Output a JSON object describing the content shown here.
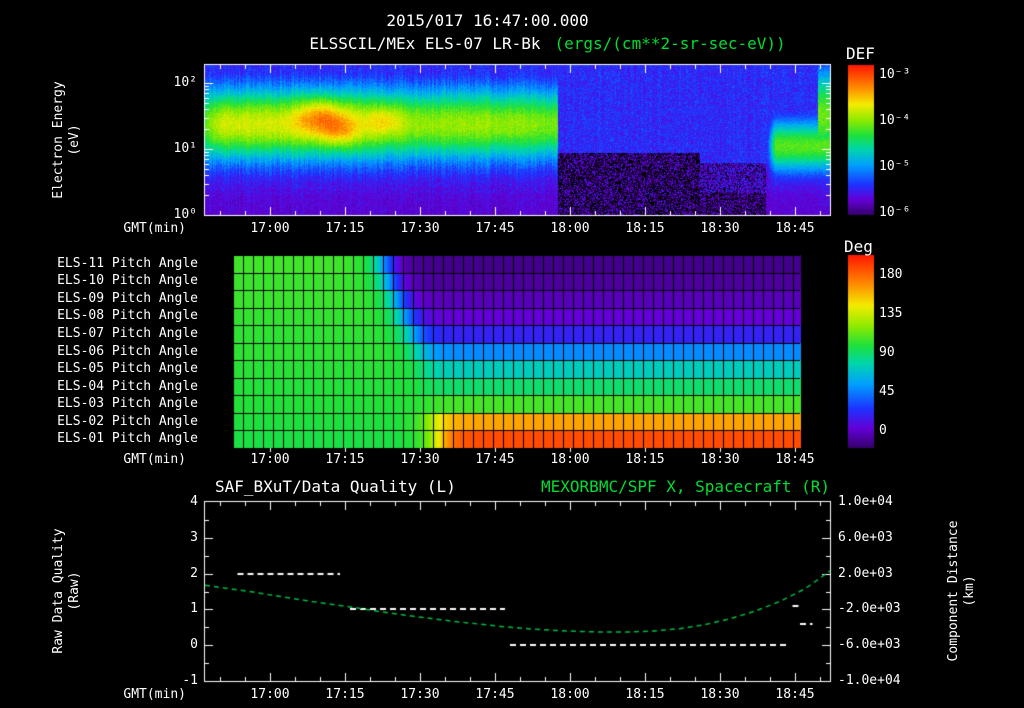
{
  "chart_data": [
    {
      "id": "electron-spectrogram",
      "type": "heatmap",
      "title": "2015/017 16:47:00.000",
      "subtitle_instrument": "ELSSCIL/MEx ELS-07 LR-Bk",
      "subtitle_units": "(ergs/(cm**2-sr-sec-eV))",
      "xlabel": "GMT(min)",
      "ylabel_line1": "Electron Energy",
      "ylabel_line2": "(eV)",
      "y_scale": "log",
      "y_range_ev": [
        1,
        186
      ],
      "y_tick_labels": [
        "10²",
        "10¹",
        "10⁰"
      ],
      "x_start_time": "16:47",
      "x_total_minutes": 125,
      "x_tick_labels": [
        "17:00",
        "17:15",
        "17:30",
        "17:45",
        "18:00",
        "18:15",
        "18:30",
        "18:45"
      ],
      "x_tick_minutes": [
        13,
        28,
        43,
        58,
        73,
        88,
        103,
        118
      ],
      "colorbar": {
        "title": "DEF",
        "units": "ergs/(cm**2-sr-sec-eV)",
        "tick_labels": [
          "10⁻³",
          "10⁻⁴",
          "10⁻⁵",
          "10⁻⁶"
        ],
        "log10_flux_range": [
          -6,
          -3
        ]
      },
      "features": [
        {
          "name": "background",
          "log10_flux": -5.45,
          "noise": 0.18
        },
        {
          "name": "low-energy-dark",
          "energy_ev_max": 6.3,
          "log10_flux": -5.8,
          "noise": 0.45
        },
        {
          "name": "bottom-black",
          "energy_ev_max": 2.2,
          "log10_flux": -6.0,
          "noise": 0.45
        },
        {
          "name": "main-band",
          "t_min_range": [
            0,
            70.5
          ],
          "center_log10_ev": 1.38,
          "sigma_log10_ev": 0.4,
          "peak_log10_flux_early": -3.9,
          "peak_log10_flux_late": -4.08
        },
        {
          "name": "hotspot-1",
          "t_min": 23,
          "sigma_t_min": 3.5,
          "center_log10_ev": 1.5,
          "sigma_log10_ev": 0.2,
          "extra_log10": 0.55
        },
        {
          "name": "hotspot-2",
          "t_min": 27,
          "sigma_t_min": 2.5,
          "center_log10_ev": 1.25,
          "sigma_log10_ev": 0.16,
          "extra_log10": 0.35
        },
        {
          "name": "hotspot-3",
          "t_min": 36,
          "sigma_t_min": 2.5,
          "center_log10_ev": 1.45,
          "sigma_log10_ev": 0.16,
          "extra_log10": 0.3
        },
        {
          "name": "post-quiet-dark",
          "t_min_range": [
            69,
            99
          ],
          "energy_ev_max": 8.9,
          "log10_flux": -6.05,
          "noise": 0.55
        },
        {
          "name": "late-blob",
          "t_min_range": [
            112,
            125
          ],
          "center_log10_ev": 1.05,
          "sigma_log10_ev": 0.28,
          "peak_log10_flux": -4.25
        },
        {
          "name": "right-edge-streak",
          "t_min_range": [
            122.5,
            125
          ],
          "center_log10_ev": 1.5,
          "sigma_log10_ev": 0.5,
          "peak_log10_flux": -4.2
        }
      ]
    },
    {
      "id": "pitch-angle-panels",
      "type": "heatmap",
      "xlabel": "GMT(min)",
      "x_axis_shared": true,
      "data_start_min": 5.6,
      "data_end_min": 119,
      "grid_cell_min": 2,
      "transition_sigma_min": 1.6,
      "colorbar": {
        "title": "Deg",
        "tick_labels": [
          "180",
          "135",
          "90",
          "45",
          "0"
        ],
        "range_deg": [
          0,
          180
        ]
      },
      "rows": [
        {
          "label": "ELS-11 Pitch Angle",
          "pre_deg": 101,
          "post_deg": 5,
          "switch_min": 36
        },
        {
          "label": "ELS-10 Pitch Angle",
          "pre_deg": 100,
          "post_deg": 8,
          "switch_min": 37
        },
        {
          "label": "ELS-09 Pitch Angle",
          "pre_deg": 100,
          "post_deg": 13,
          "switch_min": 38.5
        },
        {
          "label": "ELS-08 Pitch Angle",
          "pre_deg": 99,
          "post_deg": 18,
          "switch_min": 40
        },
        {
          "label": "ELS-07 Pitch Angle",
          "pre_deg": 98,
          "post_deg": 30,
          "switch_min": 41.5
        },
        {
          "label": "ELS-06 Pitch Angle",
          "pre_deg": 98,
          "post_deg": 55,
          "switch_min": 42.5
        },
        {
          "label": "ELS-05 Pitch Angle",
          "pre_deg": 97,
          "post_deg": 75,
          "switch_min": 43.5
        },
        {
          "label": "ELS-04 Pitch Angle",
          "pre_deg": 96,
          "post_deg": 88,
          "switch_min": 44
        },
        {
          "label": "ELS-03 Pitch Angle",
          "pre_deg": 96,
          "post_deg": 102,
          "switch_min": 44.5
        },
        {
          "label": "ELS-02 Pitch Angle",
          "pre_deg": 95,
          "post_deg": 148,
          "switch_min": 45.5
        },
        {
          "label": "ELS-01 Pitch Angle",
          "pre_deg": 94,
          "post_deg": 168,
          "switch_min": 46.5
        }
      ]
    },
    {
      "id": "quality-and-distance",
      "type": "line",
      "xlabel": "GMT(min)",
      "x_axis_shared": true,
      "left_title": "SAF_BXuT/Data Quality (L)",
      "right_title": "MEXORBMC/SPF X, Spacecraft (R)",
      "left_axis": {
        "label_line1": "Raw Data Quality",
        "label_line2": "(Raw)",
        "range": [
          -1,
          4
        ],
        "tick_labels": [
          "4",
          "3",
          "2",
          "1",
          "0",
          "-1"
        ],
        "tick_values": [
          4,
          3,
          2,
          1,
          0,
          -1
        ]
      },
      "right_axis": {
        "label_line1": "Component Distance",
        "label_line2": "(km)",
        "range": [
          -10000,
          10000
        ],
        "tick_labels": [
          "1.0e+04",
          "6.0e+03",
          "2.0e+03",
          "-2.0e+03",
          "-6.0e+03",
          "-1.0e+04"
        ],
        "tick_values": [
          10000,
          6000,
          2000,
          -2000,
          -6000,
          -10000
        ]
      },
      "series": [
        {
          "name": "Raw Data Quality",
          "axis": "left",
          "color": "#ffffff",
          "style": "dashed",
          "segments": [
            {
              "t_min": [
                6.5,
                27
              ],
              "value": 2
            },
            {
              "t_min": [
                29,
                60
              ],
              "value": 1
            },
            {
              "t_min": [
                61,
                117
              ],
              "value": 0
            },
            {
              "t_min": [
                117.5,
                119.5
              ],
              "value": 1.1
            },
            {
              "t_min": [
                119,
                121.5
              ],
              "value": 0.6
            }
          ]
        },
        {
          "name": "Spacecraft X Component Distance",
          "axis": "right",
          "color": "#00bb44",
          "style": "dashed",
          "t_min": [
            0,
            5,
            10,
            15,
            20,
            25,
            30,
            35,
            40,
            45,
            50,
            55,
            60,
            65,
            70,
            75,
            80,
            85,
            90,
            95,
            100,
            105,
            110,
            115,
            120,
            125
          ],
          "km": [
            700,
            300,
            -100,
            -550,
            -1000,
            -1400,
            -1800,
            -2250,
            -2650,
            -3000,
            -3350,
            -3650,
            -3950,
            -4180,
            -4350,
            -4470,
            -4530,
            -4520,
            -4400,
            -4150,
            -3700,
            -3050,
            -2200,
            -1100,
            300,
            2300
          ]
        }
      ]
    }
  ]
}
